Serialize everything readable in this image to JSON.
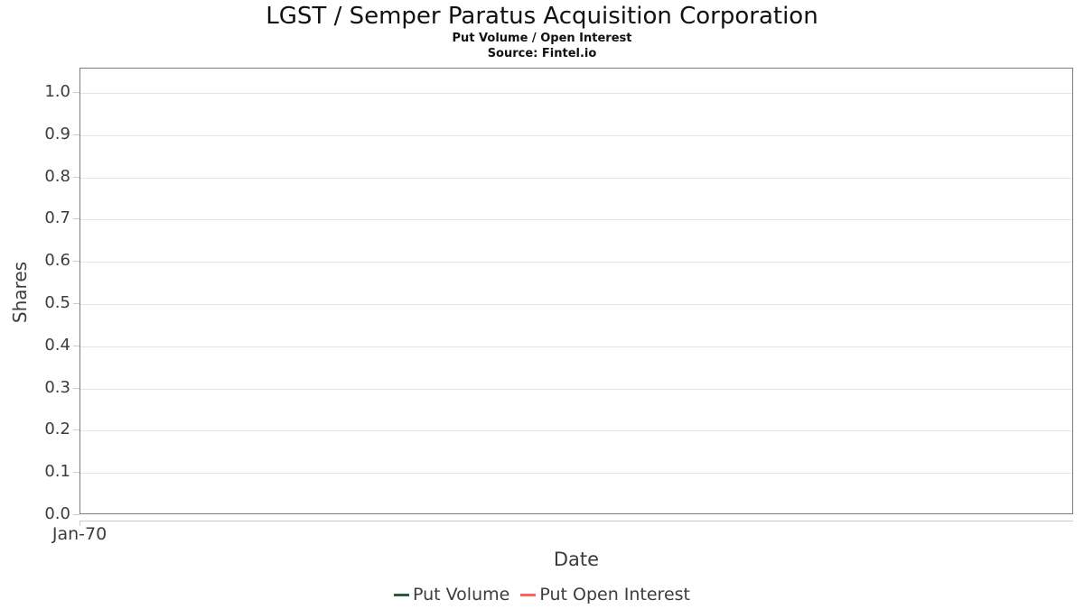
{
  "chart_data": {
    "type": "line",
    "title": "LGST / Semper Paratus Acquisition Corporation",
    "subtitle": "Put Volume / Open Interest",
    "source": "Source: Fintel.io",
    "xlabel": "Date",
    "ylabel": "Shares",
    "ylim": [
      0.0,
      1.0
    ],
    "y_ticks": [
      "0.0",
      "0.1",
      "0.2",
      "0.3",
      "0.4",
      "0.5",
      "0.6",
      "0.7",
      "0.8",
      "0.9",
      "1.0"
    ],
    "x_ticks": [
      "Jan-70"
    ],
    "grid": "horizontal-only",
    "legend_position": "bottom",
    "series": [
      {
        "name": "Put Volume",
        "color": "#2b5c35",
        "x": [],
        "values": []
      },
      {
        "name": "Put Open Interest",
        "color": "#fa6161",
        "x": [],
        "values": []
      }
    ]
  },
  "colors": {
    "background": "#ffffff",
    "plot_border": "#7c7c7c",
    "gridline": "#e5e5e5",
    "axis_line": "#cccccc",
    "tick_mark": "#cccccc",
    "axis_text": "#3c3c3c",
    "title_text": "#111111"
  }
}
